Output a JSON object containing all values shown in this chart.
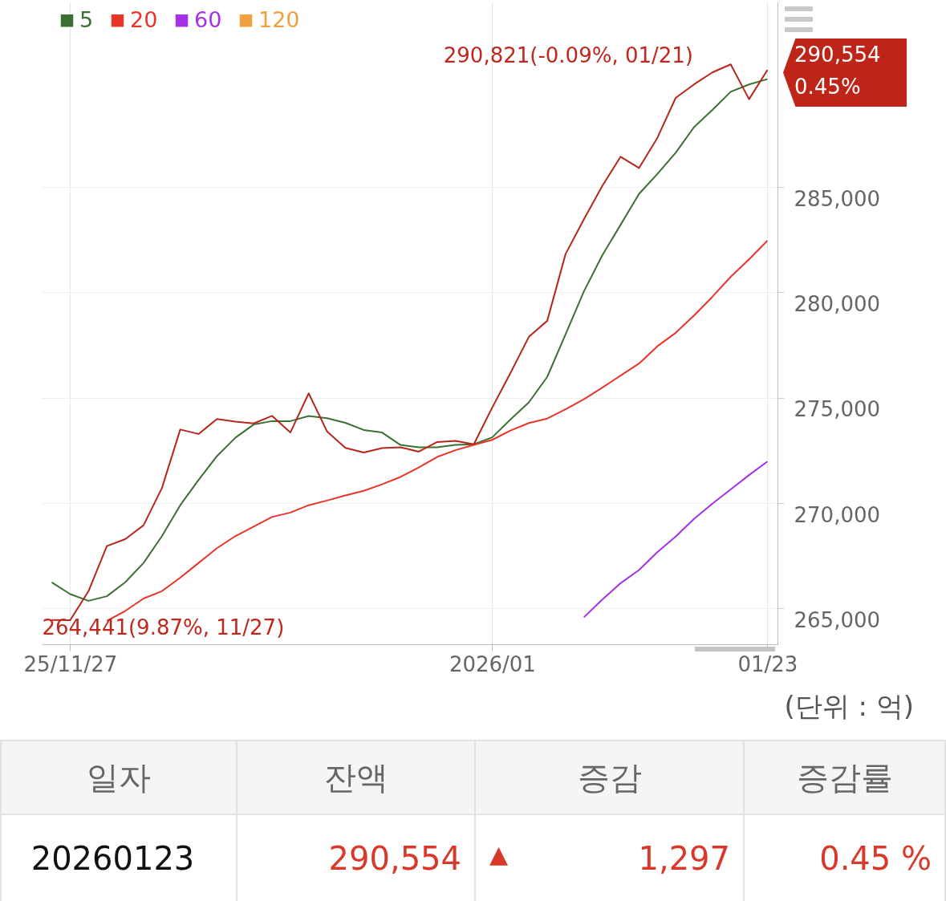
{
  "chart_data": {
    "type": "line",
    "categories": [
      null,
      "25/11/27",
      null,
      null,
      null,
      null,
      null,
      null,
      null,
      null,
      null,
      null,
      null,
      null,
      null,
      null,
      null,
      null,
      null,
      null,
      null,
      null,
      null,
      null,
      "2026/01",
      null,
      null,
      null,
      null,
      null,
      null,
      null,
      null,
      null,
      null,
      null,
      null,
      null,
      null,
      "01/23"
    ],
    "series": [
      {
        "color": "#b5271d",
        "values": [
          264450,
          264441,
          265820,
          267960,
          268290,
          268950,
          270710,
          273490,
          273280,
          273990,
          273870,
          273780,
          274140,
          273350,
          275210,
          273400,
          272620,
          272400,
          272610,
          272650,
          272440,
          272900,
          272950,
          272790,
          274530,
          276180,
          277890,
          278650,
          281820,
          283470,
          285050,
          286440,
          285900,
          287330,
          289230,
          289870,
          290440,
          290821,
          289170,
          290554
        ]
      },
      {
        "name": "5",
        "color": "#3a7030",
        "values": [
          266240,
          265680,
          265360,
          265580,
          266240,
          267160,
          268430,
          269900,
          271100,
          272230,
          273100,
          273730,
          273890,
          273890,
          274130,
          274030,
          273810,
          273470,
          273350,
          272760,
          272650,
          272650,
          272760,
          272790,
          273120,
          273970,
          274780,
          275990,
          278010,
          280050,
          281760,
          283210,
          284670,
          285620,
          286630,
          287840,
          288660,
          289520,
          289870,
          290120
        ]
      },
      {
        "name": "20",
        "color": "#e8352a",
        "values": [
          null,
          null,
          null,
          264410,
          264880,
          265470,
          265820,
          266460,
          267160,
          267860,
          268430,
          268880,
          269340,
          269550,
          269900,
          270120,
          270360,
          270580,
          270890,
          271240,
          271690,
          272190,
          272510,
          272760,
          273000,
          273440,
          273800,
          274010,
          274450,
          274930,
          275480,
          276050,
          276620,
          277440,
          278080,
          278900,
          279790,
          280740,
          281570,
          282450
        ]
      },
      {
        "name": "60",
        "color": "#a630e8",
        "values": [
          null,
          null,
          null,
          null,
          null,
          null,
          null,
          null,
          null,
          null,
          null,
          null,
          null,
          null,
          null,
          null,
          null,
          null,
          null,
          null,
          null,
          null,
          null,
          null,
          null,
          null,
          null,
          null,
          null,
          264580,
          265420,
          266200,
          266820,
          267670,
          268410,
          269250,
          269970,
          270650,
          271330,
          271970
        ]
      },
      {
        "name": "120",
        "color": "#f0a040",
        "values": [
          null,
          null,
          null,
          null,
          null,
          null,
          null,
          null,
          null,
          null,
          null,
          null,
          null,
          null,
          null,
          null,
          null,
          null,
          null,
          null,
          null,
          null,
          null,
          null,
          null,
          null,
          null,
          null,
          null,
          null,
          null,
          null,
          null,
          null,
          null,
          null,
          null,
          null,
          null,
          null
        ]
      }
    ],
    "ylim": [
      263300,
      293800
    ],
    "yticks": [
      {
        "value": 265000,
        "label": "265,000"
      },
      {
        "value": 270000,
        "label": "270,000"
      },
      {
        "value": 275000,
        "label": "275,000"
      },
      {
        "value": 280000,
        "label": "280,000"
      },
      {
        "value": 285000,
        "label": "285,000"
      }
    ],
    "grid": true,
    "legend": "top left",
    "line_style": "solid",
    "annotations": [
      "290,821(-0.09%, 01/21)",
      {
        "text": "264,441(9.87%, 11/27)",
        "x": "25/11/27",
        "y": 264441
      },
      "290,554",
      "0.45%",
      "(단위 : 억)",
      "일자",
      "잔액",
      "증감",
      "증감률",
      "20260123",
      "290,554",
      "▲",
      "1,297",
      "0.45 %"
    ]
  }
}
